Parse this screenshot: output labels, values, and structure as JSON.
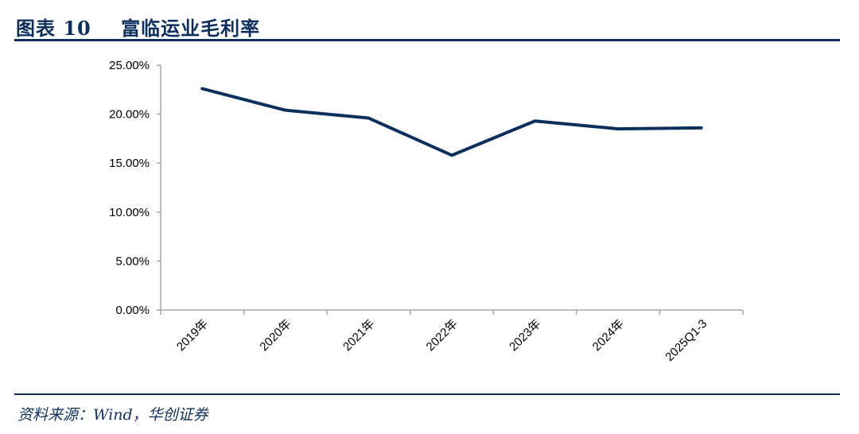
{
  "header": {
    "title": "图表 10    富临运业毛利率"
  },
  "footer": {
    "source": "资料来源：Wind，华创证券"
  },
  "colors": {
    "accent": "#0d2f5e",
    "axis": "#a6a6a6",
    "line": "#0d2f5e"
  },
  "chart_data": {
    "type": "line",
    "title": "富临运业毛利率",
    "xlabel": "",
    "ylabel": "",
    "categories": [
      "2019年",
      "2020年",
      "2021年",
      "2022年",
      "2023年",
      "2024年",
      "2025Q1-3"
    ],
    "series": [
      {
        "values": [
          22.6,
          20.4,
          19.6,
          15.8,
          19.3,
          18.5,
          18.6
        ]
      }
    ],
    "ylim": [
      0,
      25
    ],
    "yticks": [
      "0.00%",
      "5.00%",
      "10.00%",
      "15.00%",
      "20.00%",
      "25.00%"
    ],
    "grid": false,
    "legend": "none"
  }
}
